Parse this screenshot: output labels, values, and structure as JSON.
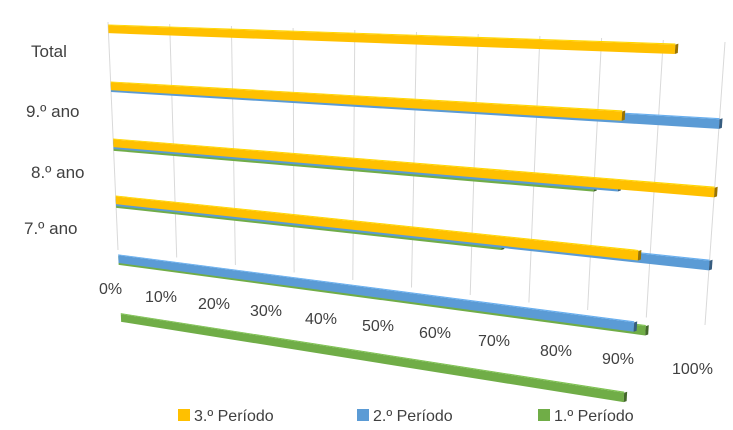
{
  "chart_data": {
    "type": "bar",
    "orientation": "horizontal",
    "categories": [
      "Total",
      "9.º ano",
      "8.º ano",
      "7.º ano"
    ],
    "series": [
      {
        "name": "3.º Período",
        "color": "#FFC000",
        "values": [
          92,
          84,
          100,
          88
        ]
      },
      {
        "name": "2.º Período",
        "color": "#5B9BD5",
        "values": [
          100,
          84,
          100,
          88
        ]
      },
      {
        "name": "1.º Período",
        "color": "#70AD47",
        "values": [
          80,
          65,
          90,
          87
        ]
      }
    ],
    "x_ticks": [
      "0%",
      "10%",
      "20%",
      "30%",
      "40%",
      "50%",
      "60%",
      "70%",
      "80%",
      "90%",
      "100%"
    ],
    "xlim": [
      0,
      100
    ],
    "grid": true,
    "legend_position": "bottom",
    "title": "",
    "xlabel": "",
    "ylabel": ""
  }
}
